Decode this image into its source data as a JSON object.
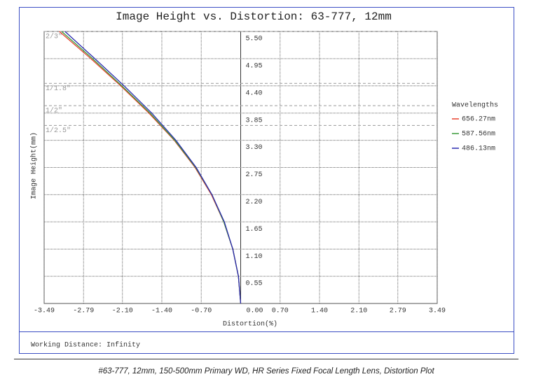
{
  "chart_data": {
    "type": "line",
    "title": "Image Height vs. Distortion: 63-777, 12mm",
    "xlabel": "Distortion(%)",
    "ylabel": "Image Height(mm)",
    "legend_title": "Wavelengths",
    "values": [
      0,
      0.55,
      1.1,
      1.65,
      2.2,
      2.75,
      3.3,
      3.85,
      4.4,
      4.95,
      5.5
    ],
    "series": [
      {
        "name": "656.27nm",
        "color": "#e8412c",
        "x": [
          0,
          -0.04,
          -0.14,
          -0.3,
          -0.52,
          -0.81,
          -1.18,
          -1.63,
          -2.13,
          -2.66,
          -3.22
        ]
      },
      {
        "name": "587.56nm",
        "color": "#3a9a3a",
        "x": [
          0,
          -0.04,
          -0.14,
          -0.3,
          -0.51,
          -0.8,
          -1.17,
          -1.61,
          -2.11,
          -2.63,
          -3.18
        ]
      },
      {
        "name": "486.13nm",
        "color": "#2a2ab0",
        "x": [
          0,
          -0.04,
          -0.14,
          -0.29,
          -0.51,
          -0.79,
          -1.15,
          -1.58,
          -2.07,
          -2.59,
          -3.12
        ]
      }
    ],
    "xlim": [
      -3.49,
      3.49
    ],
    "xticks": [
      -3.49,
      -2.79,
      {
        "value": -2.1,
        "label": "-2.10"
      },
      {
        "value": -1.4,
        "label": "-1.40"
      },
      {
        "value": -0.7,
        "label": "-0.70"
      },
      {
        "value": 0,
        "label": "0.00"
      },
      {
        "value": 0.7,
        "label": "0.70"
      },
      {
        "value": 1.4,
        "label": "1.40"
      },
      {
        "value": 2.1,
        "label": "2.10"
      },
      2.79,
      3.49
    ],
    "ylim": [
      0,
      5.5
    ],
    "yticks": [
      0.55,
      {
        "value": 1.1,
        "label": "1.10"
      },
      1.65,
      {
        "value": 2.2,
        "label": "2.20"
      },
      2.75,
      {
        "value": 3.3,
        "label": "3.30"
      },
      3.85,
      {
        "value": 4.4,
        "label": "4.40"
      },
      4.95,
      {
        "value": 5.5,
        "label": "5.50"
      }
    ],
    "grid": true,
    "annotations": [
      {
        "label": "2/3\"",
        "value": 5.5
      },
      {
        "label": "1/1.8\"",
        "value": 4.45
      },
      {
        "label": "1/2\"",
        "value": 4.0
      },
      {
        "label": "1/2.5\"",
        "value": 3.6
      }
    ],
    "footer_note": "Working Distance: Infinity",
    "caption": "#63-777, 12mm, 150-500mm Primary WD, HR Series Fixed Focal Length Lens, Distortion Plot"
  }
}
